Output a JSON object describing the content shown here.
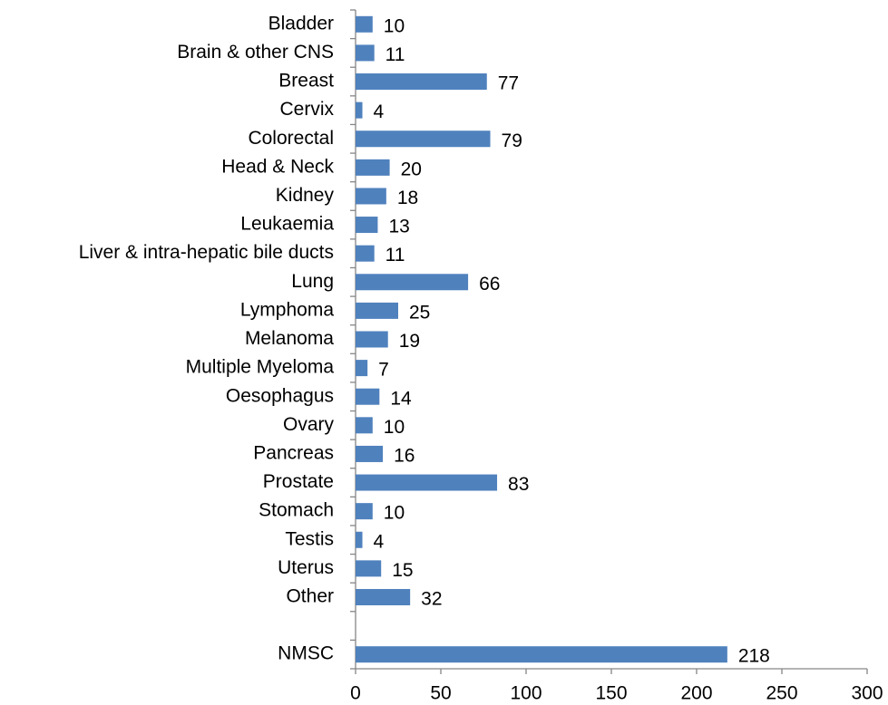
{
  "chart_data": {
    "type": "bar",
    "orientation": "horizontal",
    "categories": [
      "Bladder",
      "Brain & other CNS",
      "Breast",
      "Cervix",
      "Colorectal",
      "Head & Neck",
      "Kidney",
      "Leukaemia",
      "Liver & intra-hepatic bile ducts",
      "Lung",
      "Lymphoma",
      "Melanoma",
      "Multiple Myeloma",
      "Oesophagus",
      "Ovary",
      "Pancreas",
      "Prostate",
      "Stomach",
      "Testis",
      "Uterus",
      "Other",
      null,
      "NMSC"
    ],
    "values": [
      10,
      11,
      77,
      4,
      79,
      20,
      18,
      13,
      11,
      66,
      25,
      19,
      7,
      14,
      10,
      16,
      83,
      10,
      4,
      15,
      32,
      null,
      218
    ],
    "color": "#4f81bd",
    "xlim": [
      0,
      300
    ],
    "xticks": [
      0,
      50,
      100,
      150,
      200,
      250,
      300
    ],
    "grid": false
  }
}
